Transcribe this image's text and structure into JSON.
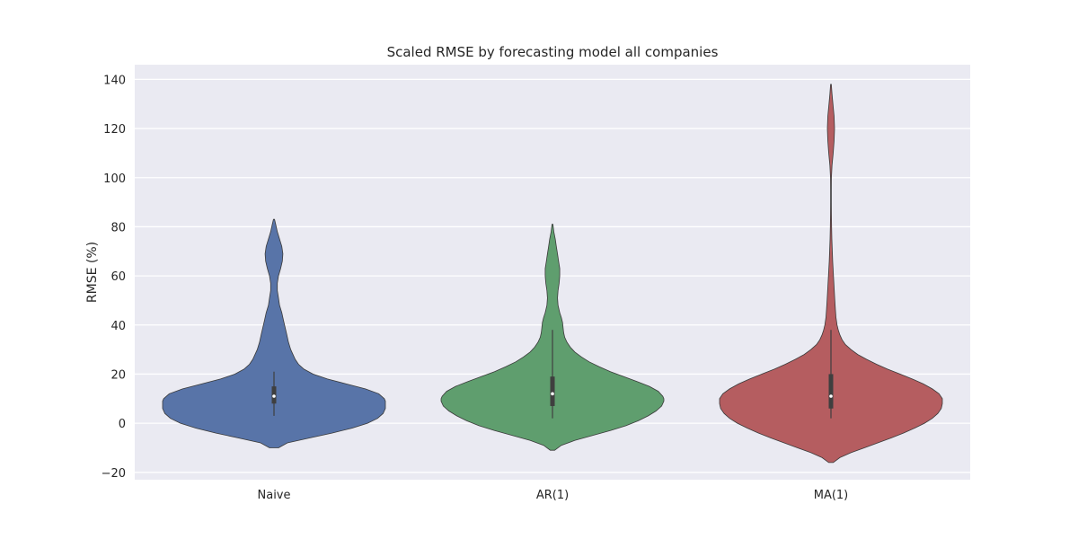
{
  "chart_data": {
    "type": "violin",
    "title": "Scaled RMSE by forecasting model all companies",
    "xlabel": "",
    "ylabel": "RMSE (%)",
    "ylim": [
      -23,
      146
    ],
    "yticks": [
      -20,
      0,
      20,
      40,
      60,
      80,
      100,
      120,
      140
    ],
    "ytick_labels": [
      "−20",
      "0",
      "20",
      "40",
      "60",
      "80",
      "100",
      "120",
      "140"
    ],
    "grid": true,
    "categories": [
      "Naive",
      "AR(1)",
      "MA(1)"
    ],
    "violins": [
      {
        "name": "Naive",
        "color": "#5874a8",
        "range": [
          -10,
          83
        ],
        "box": {
          "q1": 8,
          "median": 11,
          "q3": 15,
          "whisker_low": 3,
          "whisker_high": 21
        },
        "profile": [
          [
            -10,
            0.04
          ],
          [
            -8,
            0.12
          ],
          [
            -6,
            0.32
          ],
          [
            -4,
            0.52
          ],
          [
            -2,
            0.7
          ],
          [
            0,
            0.84
          ],
          [
            2,
            0.93
          ],
          [
            4,
            0.98
          ],
          [
            6,
            1.0
          ],
          [
            8,
            1.0
          ],
          [
            9,
            1.0
          ],
          [
            10,
            0.99
          ],
          [
            12,
            0.94
          ],
          [
            14,
            0.82
          ],
          [
            16,
            0.65
          ],
          [
            18,
            0.48
          ],
          [
            20,
            0.35
          ],
          [
            22,
            0.27
          ],
          [
            24,
            0.22
          ],
          [
            26,
            0.19
          ],
          [
            28,
            0.17
          ],
          [
            30,
            0.15
          ],
          [
            33,
            0.13
          ],
          [
            36,
            0.115
          ],
          [
            39,
            0.1
          ],
          [
            42,
            0.085
          ],
          [
            45,
            0.07
          ],
          [
            48,
            0.05
          ],
          [
            51,
            0.04
          ],
          [
            54,
            0.03
          ],
          [
            57,
            0.03
          ],
          [
            60,
            0.04
          ],
          [
            63,
            0.06
          ],
          [
            66,
            0.075
          ],
          [
            69,
            0.08
          ],
          [
            72,
            0.07
          ],
          [
            75,
            0.05
          ],
          [
            78,
            0.03
          ],
          [
            81,
            0.015
          ],
          [
            83,
            0.005
          ]
        ]
      },
      {
        "name": "AR(1)",
        "color": "#5f9e6e",
        "range": [
          -11,
          81
        ],
        "box": {
          "q1": 7,
          "median": 12,
          "q3": 19,
          "whisker_low": 2,
          "whisker_high": 38
        },
        "profile": [
          [
            -11,
            0.02
          ],
          [
            -9,
            0.08
          ],
          [
            -7,
            0.2
          ],
          [
            -5,
            0.36
          ],
          [
            -3,
            0.52
          ],
          [
            -1,
            0.66
          ],
          [
            1,
            0.77
          ],
          [
            3,
            0.86
          ],
          [
            5,
            0.93
          ],
          [
            7,
            0.98
          ],
          [
            9,
            1.0
          ],
          [
            10,
            1.0
          ],
          [
            11,
            0.99
          ],
          [
            13,
            0.95
          ],
          [
            15,
            0.87
          ],
          [
            17,
            0.76
          ],
          [
            19,
            0.64
          ],
          [
            21,
            0.52
          ],
          [
            23,
            0.42
          ],
          [
            25,
            0.33
          ],
          [
            27,
            0.26
          ],
          [
            29,
            0.2
          ],
          [
            31,
            0.16
          ],
          [
            33,
            0.13
          ],
          [
            35,
            0.11
          ],
          [
            37,
            0.1
          ],
          [
            39,
            0.095
          ],
          [
            41,
            0.09
          ],
          [
            43,
            0.08
          ],
          [
            45,
            0.065
          ],
          [
            48,
            0.05
          ],
          [
            51,
            0.045
          ],
          [
            54,
            0.05
          ],
          [
            57,
            0.06
          ],
          [
            60,
            0.065
          ],
          [
            63,
            0.065
          ],
          [
            66,
            0.055
          ],
          [
            69,
            0.045
          ],
          [
            72,
            0.035
          ],
          [
            75,
            0.025
          ],
          [
            78,
            0.012
          ],
          [
            81,
            0.004
          ]
        ]
      },
      {
        "name": "MA(1)",
        "color": "#b55d60",
        "range": [
          -16,
          138
        ],
        "box": {
          "q1": 6,
          "median": 11,
          "q3": 20,
          "whisker_low": 2,
          "whisker_high": 38
        },
        "profile": [
          [
            -16,
            0.02
          ],
          [
            -14,
            0.08
          ],
          [
            -12,
            0.18
          ],
          [
            -10,
            0.3
          ],
          [
            -8,
            0.42
          ],
          [
            -6,
            0.54
          ],
          [
            -4,
            0.65
          ],
          [
            -2,
            0.75
          ],
          [
            0,
            0.84
          ],
          [
            2,
            0.91
          ],
          [
            4,
            0.96
          ],
          [
            6,
            0.99
          ],
          [
            8,
            1.0
          ],
          [
            10,
            1.0
          ],
          [
            12,
            0.97
          ],
          [
            14,
            0.91
          ],
          [
            16,
            0.83
          ],
          [
            18,
            0.73
          ],
          [
            20,
            0.62
          ],
          [
            22,
            0.51
          ],
          [
            24,
            0.41
          ],
          [
            26,
            0.32
          ],
          [
            28,
            0.24
          ],
          [
            30,
            0.18
          ],
          [
            32,
            0.13
          ],
          [
            34,
            0.1
          ],
          [
            36,
            0.08
          ],
          [
            38,
            0.065
          ],
          [
            40,
            0.055
          ],
          [
            43,
            0.045
          ],
          [
            46,
            0.04
          ],
          [
            50,
            0.035
          ],
          [
            54,
            0.03
          ],
          [
            58,
            0.025
          ],
          [
            62,
            0.02
          ],
          [
            66,
            0.015
          ],
          [
            70,
            0.012
          ],
          [
            75,
            0.008
          ],
          [
            80,
            0.006
          ],
          [
            85,
            0.004
          ],
          [
            90,
            0.003
          ],
          [
            95,
            0.003
          ],
          [
            100,
            0.004
          ],
          [
            105,
            0.01
          ],
          [
            110,
            0.02
          ],
          [
            115,
            0.028
          ],
          [
            120,
            0.032
          ],
          [
            125,
            0.028
          ],
          [
            130,
            0.018
          ],
          [
            134,
            0.01
          ],
          [
            138,
            0.003
          ]
        ]
      }
    ]
  }
}
